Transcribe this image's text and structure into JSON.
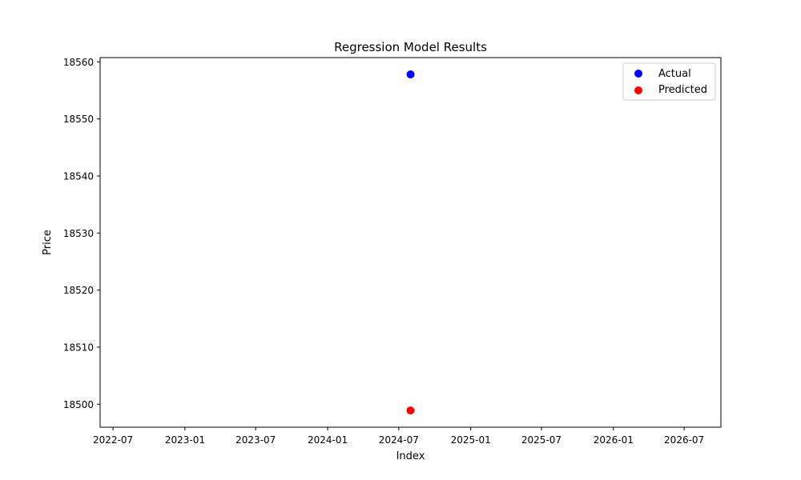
{
  "chart_data": {
    "type": "scatter",
    "title": "Regression Model Results",
    "xlabel": "Index",
    "ylabel": "Price",
    "x_axis_type": "date",
    "xlim": [
      "2022-05-29",
      "2026-10-03"
    ],
    "ylim": [
      18495.97,
      18560.75
    ],
    "x_ticks": [
      "2022-07",
      "2023-01",
      "2023-07",
      "2024-01",
      "2024-07",
      "2025-01",
      "2025-07",
      "2026-01",
      "2026-07"
    ],
    "y_ticks": [
      18500,
      18510,
      18520,
      18530,
      18540,
      18550,
      18560
    ],
    "grid": false,
    "legend_position": "top-right",
    "series": [
      {
        "name": "Actual",
        "color": "#0000ff",
        "points": [
          {
            "x": "2024-07-31",
            "y": 18557.8
          }
        ]
      },
      {
        "name": "Predicted",
        "color": "#ff0000",
        "points": [
          {
            "x": "2024-07-31",
            "y": 18498.9
          }
        ]
      }
    ]
  }
}
